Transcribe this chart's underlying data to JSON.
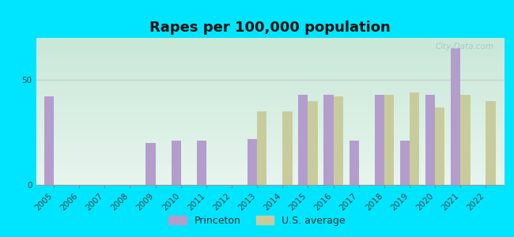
{
  "title": "Rapes per 100,000 population",
  "years": [
    2005,
    2006,
    2007,
    2008,
    2009,
    2010,
    2011,
    2012,
    2013,
    2014,
    2015,
    2016,
    2017,
    2018,
    2019,
    2020,
    2021,
    2022
  ],
  "princeton": [
    42,
    0,
    0,
    0,
    20,
    21,
    21,
    0,
    22,
    0,
    43,
    43,
    21,
    43,
    21,
    43,
    65,
    0
  ],
  "us_avg": [
    0,
    0,
    0,
    0,
    0,
    0,
    0,
    0,
    35,
    35,
    40,
    42,
    0,
    43,
    44,
    37,
    43,
    40
  ],
  "princeton_color": "#b39dcc",
  "us_avg_color": "#c8cc9d",
  "background_outer": "#00e5ff",
  "bg_top_color": "#c8e8d8",
  "bg_bottom_color": "#e8f5ee",
  "bar_width": 0.38,
  "ylim": [
    0,
    70
  ],
  "yticks": [
    0,
    50
  ],
  "grid_color": "#cccccc",
  "title_fontsize": 13,
  "tick_fontsize": 7.5,
  "legend_fontsize": 9,
  "watermark_text": "City-Data.com",
  "watermark_color": "#adc8c8",
  "xlabel_rotation": 45
}
